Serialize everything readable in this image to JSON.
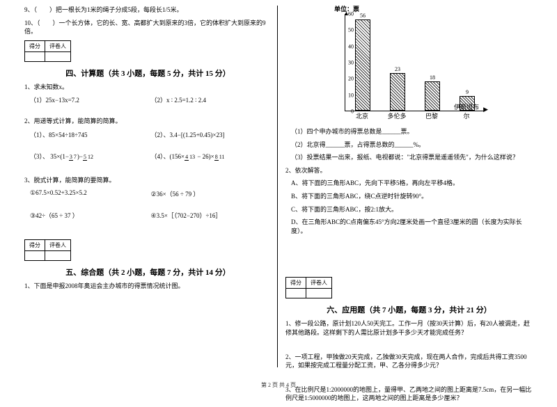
{
  "left": {
    "q9": "9、（　　）把一根长为1米的绳子分成5段，每段长1/5米。",
    "q10": "10、（　　）一个长方体，它的长、宽、高都扩大到原来的3倍，它的体积扩大到原来的9倍。",
    "scorebox": {
      "c1": "得分",
      "c2": "评卷人"
    },
    "sec4": "四、计算题（共 3 小题，每题 5 分，共计 15 分）",
    "p1": {
      "title": "1、求未知数x。",
      "a": "（1）25x−13x=7.2",
      "b": "（2）x ∶ 2.5=1.2 ∶ 2.4"
    },
    "p2": {
      "title": "2、用递等式计算，能简算的简算。",
      "a": "（1）、85×54÷18÷745",
      "b": "（2）、3.4−[(1.25+0.45)×23]",
      "c_pre": "（3）、 35×(1−",
      "c_frac1n": "3",
      "c_frac1d": "7",
      "c_mid": ")−",
      "c_frac2n": "5",
      "c_frac2d": "12",
      "d_pre": "（4）、(156×",
      "d_frac1n": "4",
      "d_frac1d": "13",
      "d_mid": " − 26)×",
      "d_frac2n": "8",
      "d_frac2d": "11"
    },
    "p3": {
      "title": "3、脱式计算，能简算的要简算。",
      "a": "①67.5×0.52+3.25×5.2",
      "b": "②36×（56 ÷ 79 ）",
      "c": "③42÷（65 ÷ 37 ）",
      "d": "④3.5×［（702−270）÷16］"
    },
    "sec5": "五、综合题（共 2 小题，每题 7 分，共计 14 分）",
    "p5_1": "1、下面是申报2008年奥运会主办城市的得票情况统计图。"
  },
  "right": {
    "chart": {
      "unit": "单位：票",
      "ymax": 60,
      "ystep": 10,
      "cats": [
        "北京",
        "多伦多",
        "巴黎",
        "伊斯坦布尔"
      ],
      "vals": [
        56,
        23,
        18,
        9
      ],
      "bar_color_pattern": "hatch",
      "axis_color": "#000000"
    },
    "qs": {
      "a": "（1）四个申办城市的得票总数是______票。",
      "b": "（2）北京得______票，占得票总数的______%。",
      "c": "（3）投票结果一出来，报纸、电视都说：\"北京得票是遥遥领先\"，为什么这样说？",
      "t2": "2、依次解答。",
      "t2a": "A、将下面的三角形ABC，先向下平移5格，再向左平移4格。",
      "t2b": "B、将下面的三角形ABC，绕C点逆时针旋转90°。",
      "t2c": "C、将下面的三角形ABC，按2:1放大。",
      "t2d": "D、在三角形ABC的C点南偏东45°方向2厘米处画一个直径3厘米的圆（长度为实际长度）。"
    },
    "scorebox": {
      "c1": "得分",
      "c2": "评卷人"
    },
    "sec6": "六、应用题（共 7 小题，每题 3 分，共计 21 分）",
    "a1": "1、修一段公路，原计划120人50天完工。工作一月（按30天计算）后，有20人被调走，赶修其他路段。这样剩下的人需比原计划多干多少天才能完成任务？",
    "a2": "2、一项工程，甲独做20天完成，乙独做30天完成，现在两人合作，完成后共得工资3500元，如果按完成工程量分配工资，甲、乙各分得多少元？",
    "a3": "3、在比例尺是1:2000000的地图上，量得甲、乙两地之间的图上距离是7.5cm，在另一幅比例尺是1:5000000的地图上，这两地之间的图上距离是多少厘米？"
  },
  "footer": "第 2 页 共 4 页"
}
